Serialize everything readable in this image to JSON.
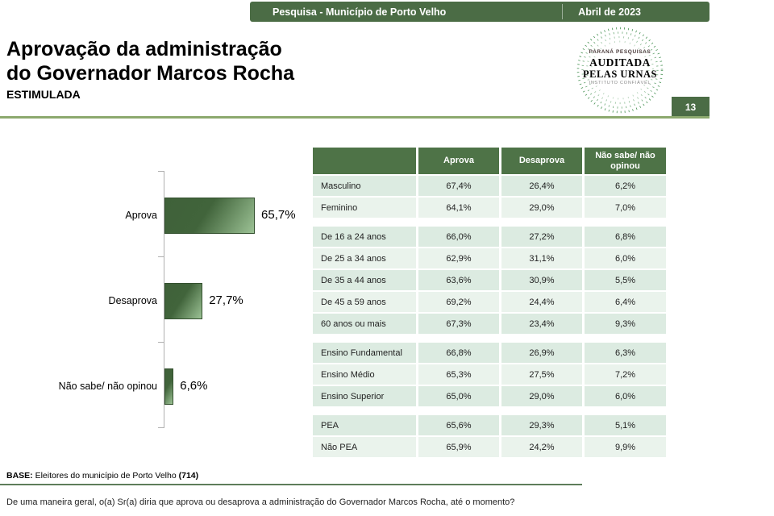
{
  "header": {
    "left": "Pesquisa - Município de Porto Velho",
    "right": "Abril de 2023"
  },
  "title": {
    "line1": "Aprovação da administração",
    "line2": "do Governador Marcos Rocha",
    "subtitle": "ESTIMULADA"
  },
  "logo": {
    "top": "PARANÁ PESQUISAS",
    "middle1": "AUDITADA",
    "middle2": "PELAS URNAS",
    "bottom": "INSTITUTO CONFIÁVEL"
  },
  "page_number": "13",
  "chart_data": {
    "type": "bar",
    "orientation": "horizontal",
    "categories": [
      "Aprova",
      "Desaprova",
      "Não sabe/ não opinou"
    ],
    "values": [
      65.7,
      27.7,
      6.6
    ],
    "value_labels": [
      "65,7%",
      "27,7%",
      "6,6%"
    ],
    "xlim": [
      0,
      100
    ],
    "bar_color_dark": "#3F6139",
    "bar_color_light": "#9CC295"
  },
  "table": {
    "headers": [
      "Aprova",
      "Desaprova",
      "Não sabe/ não opinou"
    ],
    "groups": [
      [
        [
          "Masculino",
          "67,4%",
          "26,4%",
          "6,2%"
        ],
        [
          "Feminino",
          "64,1%",
          "29,0%",
          "7,0%"
        ]
      ],
      [
        [
          "De 16 a 24 anos",
          "66,0%",
          "27,2%",
          "6,8%"
        ],
        [
          "De 25 a 34 anos",
          "62,9%",
          "31,1%",
          "6,0%"
        ],
        [
          "De 35 a 44 anos",
          "63,6%",
          "30,9%",
          "5,5%"
        ],
        [
          "De 45 a 59 anos",
          "69,2%",
          "24,4%",
          "6,4%"
        ],
        [
          "60 anos ou mais",
          "67,3%",
          "23,4%",
          "9,3%"
        ]
      ],
      [
        [
          "Ensino Fundamental",
          "66,8%",
          "26,9%",
          "6,3%"
        ],
        [
          "Ensino Médio",
          "65,3%",
          "27,5%",
          "7,2%"
        ],
        [
          "Ensino Superior",
          "65,0%",
          "29,0%",
          "6,0%"
        ]
      ],
      [
        [
          "PEA",
          "65,6%",
          "29,3%",
          "5,1%"
        ],
        [
          "Não PEA",
          "65,9%",
          "24,2%",
          "9,9%"
        ]
      ]
    ]
  },
  "footer": {
    "base_label": "BASE:",
    "base_text": " Eleitores do município de Porto Velho ",
    "base_count": "(714)",
    "question": "De uma maneira geral, o(a) Sr(a) diria que aprova ou desaprova a administração do Governador Marcos Rocha, até o momento?"
  },
  "colors": {
    "header_green": "#4B6C45",
    "table_header_green": "#4E7347",
    "row_green_dark": "#DCEBE1",
    "row_green_light": "#EAF3EC",
    "divider_olive": "#8CA96E",
    "footer_line_green": "#5E7D5A",
    "logo_dot_green": "#3E8C4B"
  }
}
